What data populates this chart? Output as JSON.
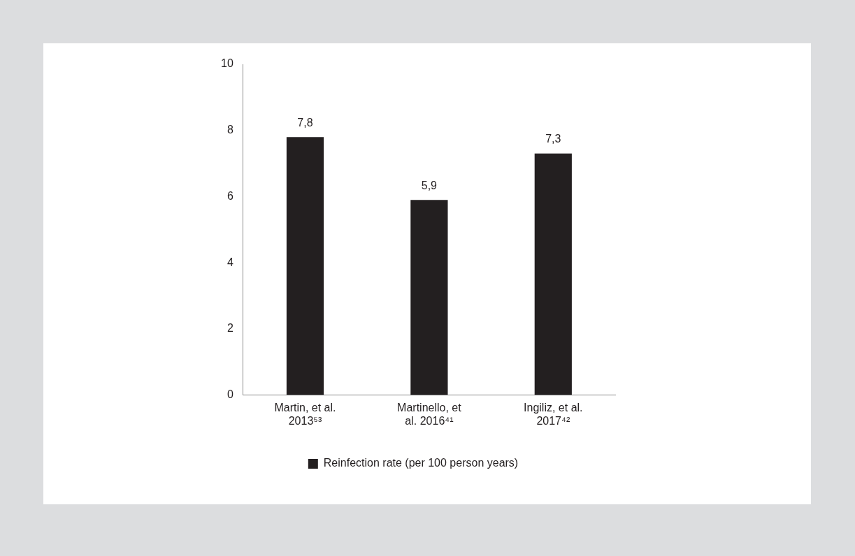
{
  "chart_data": {
    "type": "bar",
    "categories": [
      "Martin, et al. 2013⁵³",
      "Martinello, et al. 2016⁴¹",
      "Ingiliz, et al. 2017⁴²"
    ],
    "series": [
      {
        "name": "Reinfection rate (per 100 person years)",
        "color": "#231f20",
        "values": [
          7.8,
          5.9,
          7.3
        ],
        "value_labels": [
          "7,8",
          "5,9",
          "7,3"
        ]
      }
    ],
    "ylim": [
      0,
      10
    ],
    "yticks": [
      0,
      2,
      4,
      6,
      8,
      10
    ],
    "grid": false,
    "legend": "bottom"
  }
}
